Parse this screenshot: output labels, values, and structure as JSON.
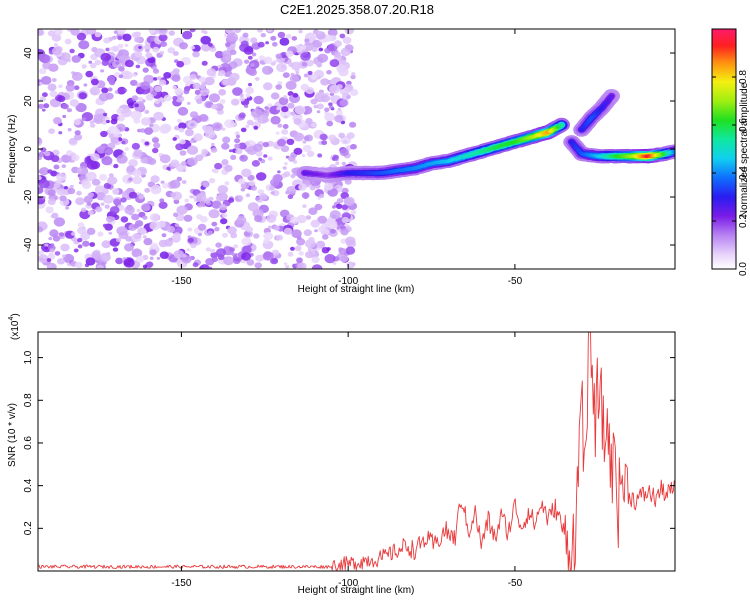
{
  "title": "C2E1.2025.358.07.20.R18",
  "chart_data": [
    {
      "type": "heatmap",
      "title": "C2E1.2025.358.07.20.R18",
      "xlabel": "Height of straight line (km)",
      "ylabel": "Frequency (Hz)",
      "xlim": [
        -193,
        -2
      ],
      "ylim": [
        -50,
        50
      ],
      "xticks": [
        -150,
        -100,
        -50
      ],
      "yticks": [
        -40,
        -20,
        0,
        20,
        40
      ],
      "colorbar": {
        "label": "Normalized spectral amplitude",
        "range": [
          0,
          1
        ],
        "ticks": [
          "0.0",
          "0.2",
          "0.4",
          "0.6",
          "0.8"
        ]
      },
      "noise_region": {
        "x": [
          -193,
          -100
        ],
        "level": 0.05
      },
      "ridge": {
        "x": [
          -113,
          -106,
          -100,
          -95,
          -90,
          -85,
          -80,
          -75,
          -70,
          -65,
          -60,
          -55,
          -50,
          -45,
          -40,
          -36
        ],
        "y": [
          -10,
          -11,
          -10,
          -10,
          -10,
          -9,
          -8,
          -6,
          -5,
          -3,
          -1,
          1,
          3,
          5,
          7,
          10
        ],
        "amp": [
          0.25,
          0.2,
          0.3,
          0.32,
          0.35,
          0.38,
          0.4,
          0.42,
          0.45,
          0.5,
          0.55,
          0.6,
          0.62,
          0.7,
          0.85,
          0.55
        ]
      },
      "ridge2": {
        "x": [
          -33,
          -30,
          -25,
          -20,
          -15,
          -10,
          -5,
          -2
        ],
        "y": [
          3,
          -2,
          -3,
          -3,
          -3,
          -3,
          -2,
          -1
        ],
        "amp": [
          0.3,
          0.35,
          0.45,
          0.6,
          0.7,
          0.95,
          0.6,
          0.4
        ]
      },
      "ridge3": {
        "x": [
          -30,
          -27,
          -24,
          -21
        ],
        "y": [
          8,
          13,
          17,
          22
        ],
        "amp": [
          0.3,
          0.35,
          0.3,
          0.25
        ]
      }
    },
    {
      "type": "line",
      "xlabel": "Height of straight line (km)",
      "ylabel": "SNR (10 * v/v)",
      "y_multiplier": "(x10^4)",
      "multiplier_base": "(x10",
      "multiplier_exp": "4",
      "multiplier_close": ")",
      "xlim": [
        -193,
        -2
      ],
      "ylim": [
        0,
        1.12
      ],
      "xticks": [
        -150,
        -100,
        -50
      ],
      "yticks": [
        0.2,
        0.4,
        0.6,
        0.8,
        1.0
      ],
      "ytick_labels": [
        "0.2",
        "0.4",
        "0.6",
        "0.8",
        "1.0"
      ],
      "color": "#e8393b",
      "series": [
        {
          "name": "SNR",
          "x": [
            -193,
            -180,
            -160,
            -140,
            -120,
            -106,
            -100,
            -95,
            -90,
            -86,
            -82,
            -80,
            -77,
            -74,
            -71,
            -68,
            -66,
            -64,
            -62,
            -60,
            -58,
            -56,
            -54,
            -52,
            -50,
            -48,
            -46,
            -44,
            -42,
            -40,
            -38,
            -36,
            -34,
            -32,
            -31,
            -30,
            -29,
            -28,
            -27,
            -26,
            -25,
            -24,
            -23,
            -22,
            -21,
            -20,
            -19,
            -18,
            -16,
            -14,
            -12,
            -10,
            -8,
            -6,
            -4,
            -2
          ],
          "y": [
            0.02,
            0.02,
            0.02,
            0.02,
            0.02,
            0.02,
            0.03,
            0.05,
            0.06,
            0.09,
            0.12,
            0.09,
            0.15,
            0.12,
            0.19,
            0.15,
            0.35,
            0.18,
            0.28,
            0.12,
            0.24,
            0.15,
            0.26,
            0.18,
            0.31,
            0.2,
            0.28,
            0.22,
            0.32,
            0.24,
            0.3,
            0.22,
            0.08,
            0.18,
            0.42,
            0.95,
            0.35,
            0.92,
            1.1,
            0.6,
            0.9,
            0.75,
            0.58,
            0.72,
            0.4,
            0.62,
            0.3,
            0.45,
            0.36,
            0.33,
            0.35,
            0.37,
            0.34,
            0.38,
            0.36,
            0.4
          ]
        }
      ]
    }
  ]
}
